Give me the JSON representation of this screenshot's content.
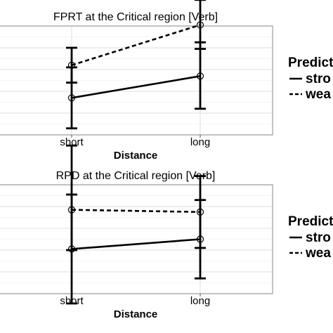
{
  "chart_data": [
    {
      "type": "line",
      "title": "FPRT at the Critical region [Verb]",
      "xlabel": "Distance",
      "ylabel": "",
      "categories": [
        "short",
        "long"
      ],
      "ylim": [
        0,
        100
      ],
      "grid": true,
      "y_tick_labels_visible": false,
      "legend": {
        "title": "Predict",
        "position": "right",
        "clipped": true
      },
      "series": [
        {
          "name": "stro",
          "linestyle": "solid",
          "values": [
            34,
            54
          ],
          "error": [
            [
              6,
              62
            ],
            [
              24,
              85
            ]
          ]
        },
        {
          "name": "wea",
          "linestyle": "dashed",
          "values": [
            64,
            101
          ],
          "error": [
            [
              48,
              80
            ],
            [
              79,
              124
            ]
          ]
        }
      ]
    },
    {
      "type": "line",
      "title": "RPD at the Critical region [Verb]",
      "xlabel": "Distance",
      "ylabel": "",
      "categories": [
        "short",
        "long"
      ],
      "ylim": [
        0,
        100
      ],
      "grid": true,
      "y_tick_labels_visible": false,
      "legend": {
        "title": "Predict",
        "position": "right",
        "clipped": true
      },
      "series": [
        {
          "name": "stro",
          "linestyle": "solid",
          "values": [
            41,
            50
          ],
          "error": [
            [
              -9,
              91
            ],
            [
              14,
              86
            ]
          ]
        },
        {
          "name": "wea",
          "linestyle": "dashed",
          "values": [
            77,
            75
          ],
          "error": [
            [
              40,
              136
            ],
            [
              42,
              108
            ]
          ]
        }
      ]
    }
  ]
}
